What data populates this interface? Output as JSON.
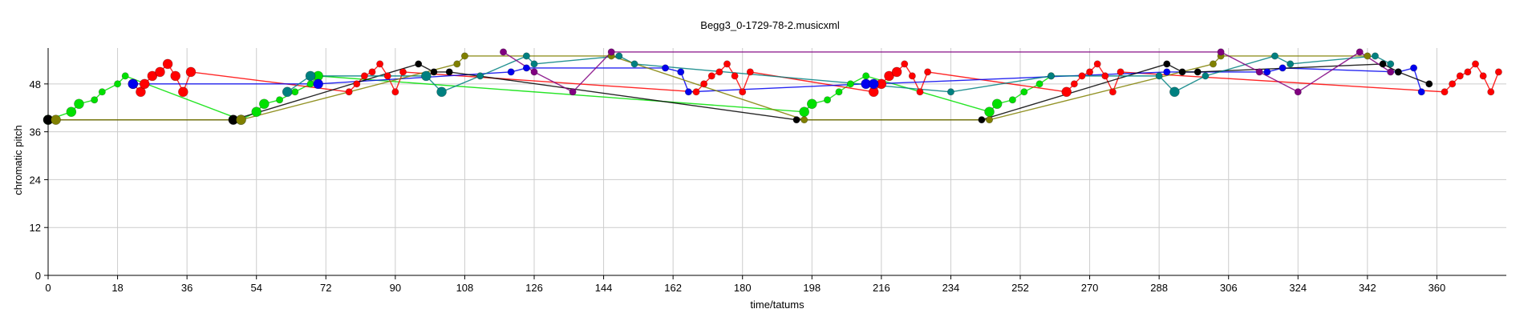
{
  "chart_data": {
    "type": "scatter",
    "title": "Begg3_0-1729-78-2.musicxml",
    "xlabel": "time/tatums",
    "ylabel": "chromatic pitch",
    "xlim": [
      0,
      378
    ],
    "ylim": [
      0,
      57
    ],
    "grid": true,
    "legend": "none",
    "x_ticks": [
      "0",
      "18",
      "36",
      "54",
      "72",
      "90",
      "108",
      "126",
      "144",
      "162",
      "180",
      "198",
      "216",
      "234",
      "252",
      "270",
      "288",
      "306",
      "324",
      "342",
      "360"
    ],
    "y_ticks": [
      "0",
      "12",
      "24",
      "36",
      "48"
    ],
    "series": [
      {
        "color": "#00e000",
        "points": [
          [
            0,
            39
          ],
          [
            6,
            41
          ],
          [
            8,
            43
          ],
          [
            12,
            44
          ],
          [
            14,
            46
          ],
          [
            18,
            48
          ],
          [
            20,
            50
          ],
          [
            50,
            39
          ],
          [
            54,
            41
          ],
          [
            56,
            43
          ],
          [
            60,
            44
          ],
          [
            64,
            46
          ],
          [
            68,
            48
          ],
          [
            70,
            50
          ],
          [
            196,
            41
          ],
          [
            198,
            43
          ],
          [
            202,
            44
          ],
          [
            205,
            46
          ],
          [
            208,
            48
          ],
          [
            212,
            50
          ],
          [
            244,
            41
          ],
          [
            246,
            43
          ],
          [
            250,
            44
          ],
          [
            253,
            46
          ],
          [
            257,
            48
          ],
          [
            260,
            50
          ]
        ],
        "sizes": [
          1,
          1,
          1,
          0,
          0,
          0,
          0,
          1,
          1,
          1,
          0,
          0,
          0,
          1,
          1,
          1,
          0,
          0,
          0,
          0,
          1,
          1,
          0,
          0,
          0,
          0
        ]
      },
      {
        "color": "#ff0000",
        "points": [
          [
            22,
            48
          ],
          [
            24,
            46
          ],
          [
            25,
            48
          ],
          [
            27,
            50
          ],
          [
            29,
            51
          ],
          [
            31,
            53
          ],
          [
            33,
            50
          ],
          [
            35,
            46
          ],
          [
            37,
            51
          ],
          [
            78,
            46
          ],
          [
            80,
            48
          ],
          [
            82,
            50
          ],
          [
            84,
            51
          ],
          [
            86,
            53
          ],
          [
            88,
            50
          ],
          [
            90,
            46
          ],
          [
            92,
            51
          ],
          [
            168,
            46
          ],
          [
            170,
            48
          ],
          [
            172,
            50
          ],
          [
            174,
            51
          ],
          [
            176,
            53
          ],
          [
            178,
            50
          ],
          [
            180,
            46
          ],
          [
            182,
            51
          ],
          [
            214,
            46
          ],
          [
            216,
            48
          ],
          [
            218,
            50
          ],
          [
            220,
            51
          ],
          [
            222,
            53
          ],
          [
            224,
            50
          ],
          [
            226,
            46
          ],
          [
            228,
            51
          ],
          [
            264,
            46
          ],
          [
            266,
            48
          ],
          [
            268,
            50
          ],
          [
            270,
            51
          ],
          [
            272,
            53
          ],
          [
            274,
            50
          ],
          [
            276,
            46
          ],
          [
            278,
            51
          ],
          [
            362,
            46
          ],
          [
            364,
            48
          ],
          [
            366,
            50
          ],
          [
            368,
            51
          ],
          [
            370,
            53
          ],
          [
            372,
            50
          ],
          [
            374,
            46
          ],
          [
            376,
            51
          ]
        ],
        "sizes": [
          1,
          1,
          1,
          1,
          1,
          1,
          1,
          1,
          1,
          0,
          0,
          0,
          0,
          0,
          0,
          0,
          0,
          0,
          0,
          0,
          0,
          0,
          0,
          0,
          0,
          1,
          1,
          1,
          1,
          0,
          0,
          0,
          0,
          1,
          0,
          0,
          0,
          0,
          0,
          0,
          0,
          0,
          0,
          0,
          0,
          0,
          0,
          0,
          0
        ]
      },
      {
        "color": "#0000ee",
        "points": [
          [
            22,
            48
          ],
          [
            70,
            48
          ],
          [
            120,
            51
          ],
          [
            124,
            52
          ],
          [
            160,
            52
          ],
          [
            164,
            51
          ],
          [
            166,
            46
          ],
          [
            212,
            48
          ],
          [
            214,
            48
          ],
          [
            290,
            51
          ],
          [
            316,
            51
          ],
          [
            320,
            52
          ],
          [
            350,
            51
          ],
          [
            354,
            52
          ],
          [
            356,
            46
          ]
        ],
        "sizes": [
          1,
          1,
          0,
          0,
          0,
          0,
          0,
          1,
          1,
          0,
          0,
          0,
          0,
          0,
          0
        ]
      },
      {
        "color": "#000000",
        "points": [
          [
            0,
            39
          ],
          [
            48,
            39
          ],
          [
            96,
            53
          ],
          [
            100,
            51
          ],
          [
            104,
            51
          ],
          [
            194,
            39
          ],
          [
            242,
            39
          ],
          [
            290,
            53
          ],
          [
            294,
            51
          ],
          [
            298,
            51
          ],
          [
            346,
            53
          ],
          [
            350,
            51
          ],
          [
            358,
            48
          ]
        ],
        "sizes": [
          1,
          1,
          0,
          0,
          0,
          0,
          0,
          0,
          0,
          0,
          0,
          0,
          0
        ]
      },
      {
        "color": "#008080",
        "points": [
          [
            62,
            46
          ],
          [
            68,
            50
          ],
          [
            98,
            50
          ],
          [
            102,
            46
          ],
          [
            112,
            50
          ],
          [
            124,
            55
          ],
          [
            126,
            53
          ],
          [
            148,
            55
          ],
          [
            152,
            53
          ],
          [
            234,
            46
          ],
          [
            260,
            50
          ],
          [
            288,
            50
          ],
          [
            292,
            46
          ],
          [
            300,
            50
          ],
          [
            318,
            55
          ],
          [
            322,
            53
          ],
          [
            344,
            55
          ],
          [
            348,
            53
          ]
        ],
        "sizes": [
          1,
          1,
          1,
          1,
          0,
          0,
          0,
          0,
          0,
          0,
          0,
          0,
          1,
          0,
          0,
          0,
          0,
          0
        ]
      },
      {
        "color": "#808000",
        "points": [
          [
            2,
            39
          ],
          [
            50,
            39
          ],
          [
            106,
            53
          ],
          [
            108,
            55
          ],
          [
            146,
            55
          ],
          [
            196,
            39
          ],
          [
            244,
            39
          ],
          [
            302,
            53
          ],
          [
            304,
            55
          ],
          [
            342,
            55
          ]
        ],
        "sizes": [
          1,
          1,
          0,
          0,
          0,
          0,
          0,
          0,
          0,
          0
        ]
      },
      {
        "color": "#800080",
        "points": [
          [
            118,
            56
          ],
          [
            126,
            51
          ],
          [
            136,
            46
          ],
          [
            146,
            56
          ],
          [
            304,
            56
          ],
          [
            314,
            51
          ],
          [
            324,
            46
          ],
          [
            340,
            56
          ],
          [
            348,
            51
          ]
        ],
        "sizes": [
          0,
          0,
          0,
          0,
          0,
          0,
          0,
          0,
          0
        ]
      }
    ]
  }
}
